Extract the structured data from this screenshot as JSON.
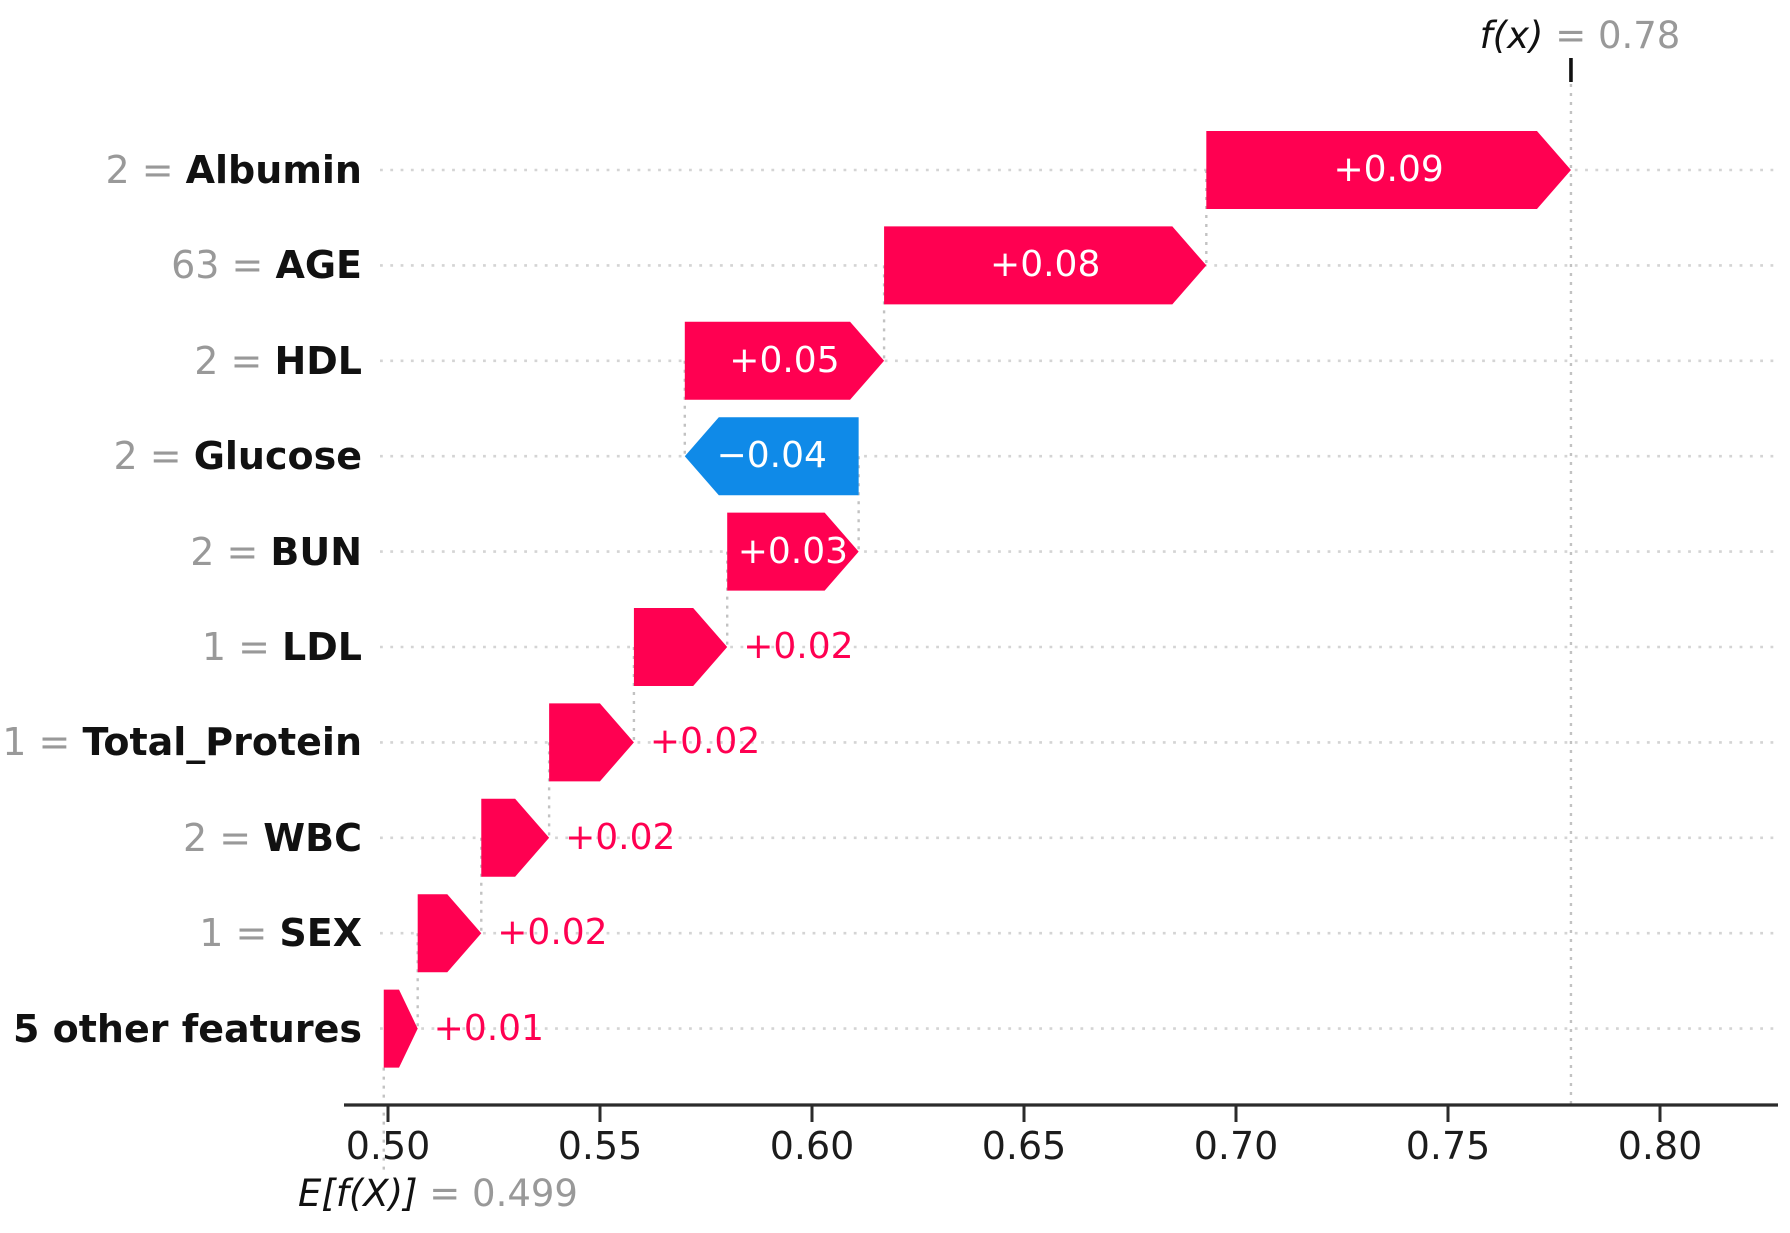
{
  "chart_data": {
    "type": "bar",
    "subtype": "shap-waterfall",
    "orientation": "horizontal",
    "base_value": 0.499,
    "output_value": 0.78,
    "fx_annotation": {
      "math": "f(x)",
      "eq": " = 0.78"
    },
    "ef_annotation": {
      "math": "E[f(X)]",
      "eq": " = 0.499"
    },
    "xlabel": "",
    "ylabel": "",
    "xlim": [
      0.49,
      0.828
    ],
    "x_ticks": [
      {
        "value": 0.5,
        "label": "0.50"
      },
      {
        "value": 0.55,
        "label": "0.55"
      },
      {
        "value": 0.6,
        "label": "0.60"
      },
      {
        "value": 0.65,
        "label": "0.65"
      },
      {
        "value": 0.7,
        "label": "0.70"
      },
      {
        "value": 0.75,
        "label": "0.75"
      },
      {
        "value": 0.8,
        "label": "0.80"
      }
    ],
    "grid": "dotted-horizontal-per-row",
    "features": [
      {
        "prefix": "2 = ",
        "name": "Albumin",
        "shap_label": "+0.09",
        "shap": 0.086,
        "start": 0.693,
        "end": 0.779,
        "negative": false,
        "label_inside": true
      },
      {
        "prefix": "63 = ",
        "name": "AGE",
        "shap_label": "+0.08",
        "shap": 0.076,
        "start": 0.617,
        "end": 0.693,
        "negative": false,
        "label_inside": true
      },
      {
        "prefix": "2 = ",
        "name": "HDL",
        "shap_label": "+0.05",
        "shap": 0.047,
        "start": 0.57,
        "end": 0.617,
        "negative": false,
        "label_inside": true
      },
      {
        "prefix": "2 = ",
        "name": "Glucose",
        "shap_label": "−0.04",
        "shap": -0.041,
        "start": 0.611,
        "end": 0.57,
        "negative": true,
        "label_inside": true
      },
      {
        "prefix": "2 = ",
        "name": "BUN",
        "shap_label": "+0.03",
        "shap": 0.031,
        "start": 0.58,
        "end": 0.611,
        "negative": false,
        "label_inside": true
      },
      {
        "prefix": "1 = ",
        "name": "LDL",
        "shap_label": "+0.02",
        "shap": 0.022,
        "start": 0.558,
        "end": 0.58,
        "negative": false,
        "label_inside": false
      },
      {
        "prefix": "1 = ",
        "name": "Total_Protein",
        "shap_label": "+0.02",
        "shap": 0.02,
        "start": 0.538,
        "end": 0.558,
        "negative": false,
        "label_inside": false
      },
      {
        "prefix": "2 = ",
        "name": "WBC",
        "shap_label": "+0.02",
        "shap": 0.016,
        "start": 0.522,
        "end": 0.538,
        "negative": false,
        "label_inside": false
      },
      {
        "prefix": "1 = ",
        "name": "SEX",
        "shap_label": "+0.02",
        "shap": 0.015,
        "start": 0.507,
        "end": 0.522,
        "negative": false,
        "label_inside": false
      },
      {
        "prefix": "",
        "name": "5 other features",
        "shap_label": "+0.01",
        "shap": 0.008,
        "start": 0.499,
        "end": 0.507,
        "negative": false,
        "label_inside": false
      }
    ],
    "colors": {
      "positive_bar": "#ff0051",
      "negative_bar": "#0f8ae8",
      "value_text_inside": "#ffffff",
      "value_text_outside": "#ff0051",
      "label_prefix": "#999999",
      "label_name": "#111111",
      "gridline": "#d4d4d4",
      "connector": "#c2c2c2",
      "axis": "#2b2b2b",
      "annotation_gray": "#999999",
      "background": "#ffffff"
    }
  }
}
